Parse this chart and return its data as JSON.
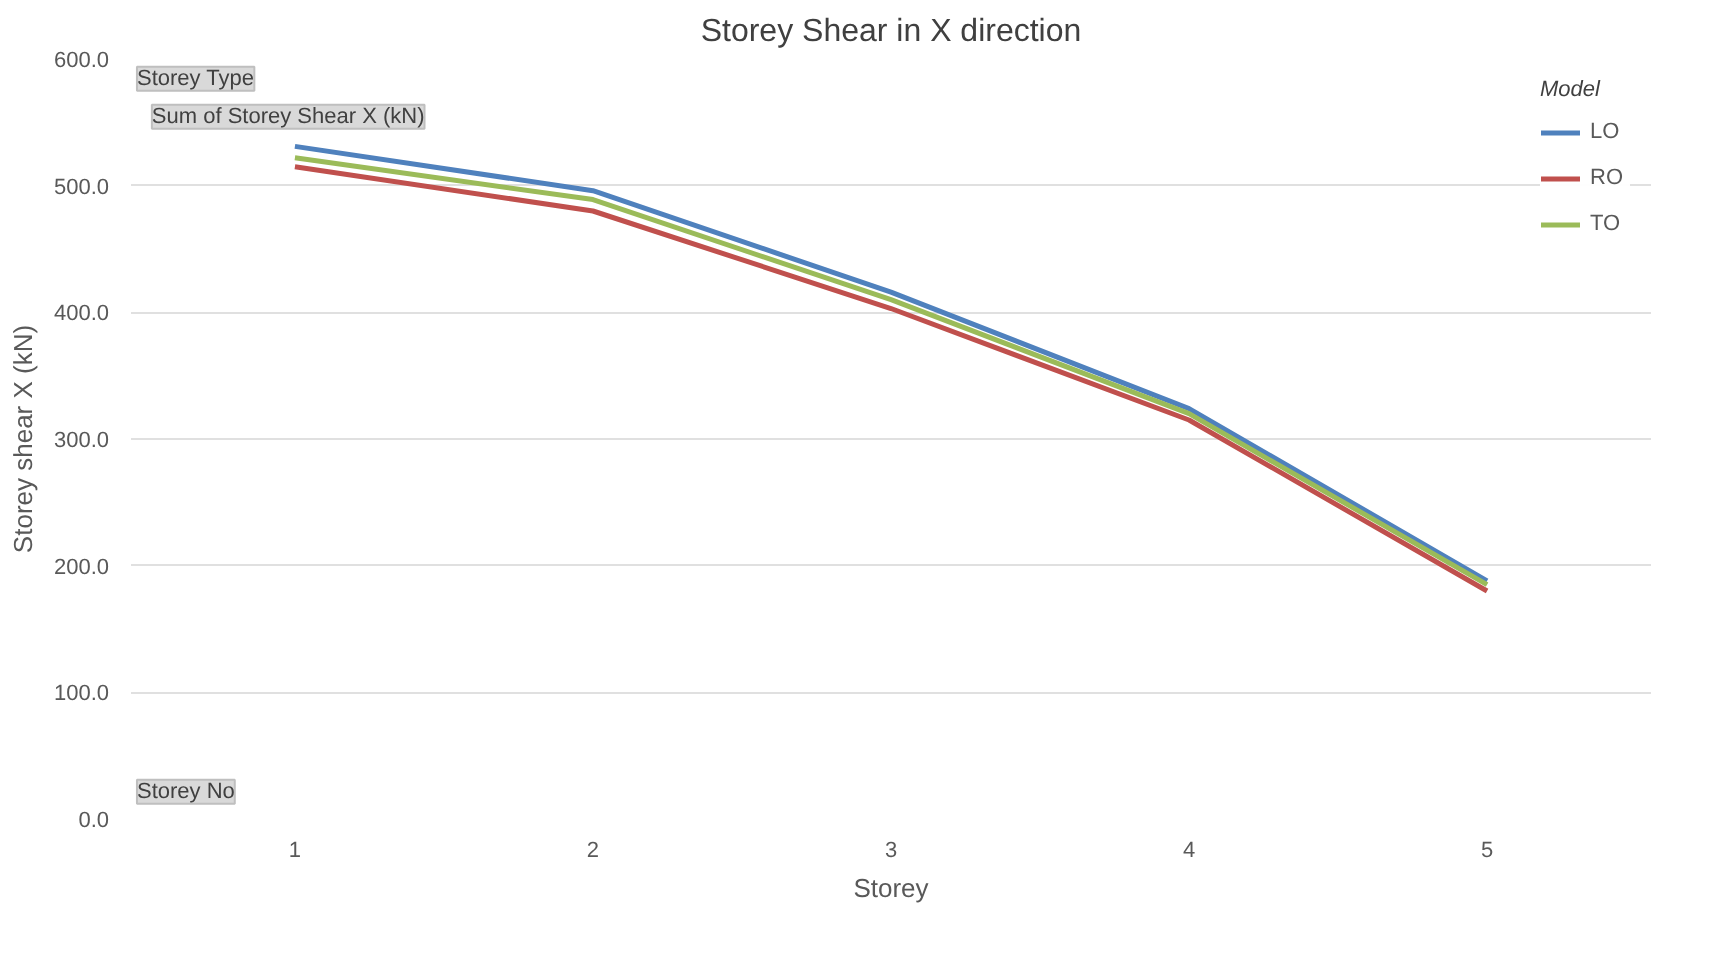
{
  "chart_data": {
    "type": "line",
    "title": "Storey Shear in X direction",
    "xlabel": "Storey",
    "ylabel": "Storey shear X (kN)",
    "legend_title": "Model",
    "categories": [
      "1",
      "2",
      "3",
      "4",
      "5"
    ],
    "series": [
      {
        "name": "LO",
        "color": "#4f81bd",
        "values": [
          531,
          496,
          416,
          324,
          188
        ]
      },
      {
        "name": "RO",
        "color": "#c0504d",
        "values": [
          515,
          480,
          403,
          315,
          180
        ]
      },
      {
        "name": "TO",
        "color": "#9bbb59",
        "values": [
          522,
          489,
          410,
          320,
          185
        ]
      }
    ],
    "ylim": [
      0,
      600
    ],
    "yticks": [
      {
        "value": 0,
        "label": "0.0"
      },
      {
        "value": 100,
        "label": "100.0"
      },
      {
        "value": 200,
        "label": "200.0"
      },
      {
        "value": 300,
        "label": "300.0"
      },
      {
        "value": 400,
        "label": "400.0"
      },
      {
        "value": 500,
        "label": "500.0"
      },
      {
        "value": 600,
        "label": "600.0"
      }
    ],
    "grid": "y",
    "legend": "top right",
    "marker": "none",
    "line_style": "solid",
    "annotations": [
      "Storey Type",
      "Sum of Storey Shear X (kN)",
      "Storey No"
    ]
  }
}
